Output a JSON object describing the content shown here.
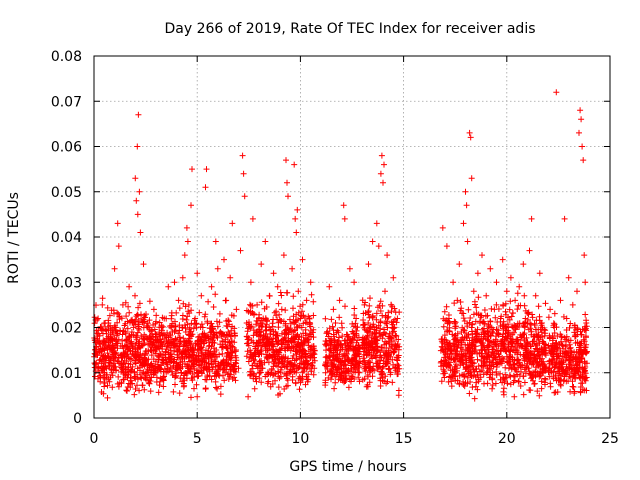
{
  "chart_data": {
    "type": "scatter",
    "title": "Day 266 of 2019, Rate Of TEC Index for receiver adis",
    "xlabel": "GPS time / hours",
    "ylabel": "ROTI / TECUs",
    "xlim": [
      0,
      25
    ],
    "ylim": [
      0,
      0.08
    ],
    "xticks": [
      0,
      5,
      10,
      15,
      20,
      25
    ],
    "xtick_labels": [
      "0",
      "5",
      "10",
      "15",
      "20",
      "25"
    ],
    "yticks": [
      0,
      0.01,
      0.02,
      0.03,
      0.04,
      0.05,
      0.06,
      0.07,
      0.08
    ],
    "ytick_labels": [
      "0",
      "0.01",
      "0.02",
      "0.03",
      "0.04",
      "0.05",
      "0.06",
      "0.07",
      "0.08"
    ],
    "grid": true,
    "marker": "+",
    "color": "#ff0000",
    "series": [
      {
        "name": "ROTI",
        "points": [
          [
            0.1,
            0.012
          ],
          [
            0.2,
            0.022
          ],
          [
            0.3,
            0.008
          ],
          [
            0.4,
            0.025
          ],
          [
            0.5,
            0.015
          ],
          [
            0.6,
            0.011
          ],
          [
            0.7,
            0.018
          ],
          [
            0.8,
            0.009
          ],
          [
            0.9,
            0.014
          ],
          [
            1.0,
            0.033
          ],
          [
            1.05,
            0.02
          ],
          [
            1.15,
            0.043
          ],
          [
            1.2,
            0.038
          ],
          [
            1.3,
            0.012
          ],
          [
            1.4,
            0.025
          ],
          [
            1.5,
            0.01
          ],
          [
            1.6,
            0.017
          ],
          [
            1.7,
            0.029
          ],
          [
            1.8,
            0.013
          ],
          [
            1.9,
            0.021
          ],
          [
            2.0,
            0.053
          ],
          [
            2.05,
            0.048
          ],
          [
            2.1,
            0.06
          ],
          [
            2.12,
            0.045
          ],
          [
            2.15,
            0.067
          ],
          [
            2.2,
            0.05
          ],
          [
            2.25,
            0.041
          ],
          [
            2.3,
            0.016
          ],
          [
            2.4,
            0.034
          ],
          [
            2.5,
            0.012
          ],
          [
            2.6,
            0.02
          ],
          [
            2.7,
            0.009
          ],
          [
            2.8,
            0.015
          ],
          [
            2.9,
            0.024
          ],
          [
            3.0,
            0.011
          ],
          [
            3.1,
            0.018
          ],
          [
            3.2,
            0.008
          ],
          [
            3.3,
            0.013
          ],
          [
            3.4,
            0.022
          ],
          [
            3.5,
            0.01
          ],
          [
            3.6,
            0.029
          ],
          [
            3.7,
            0.014
          ],
          [
            3.8,
            0.019
          ],
          [
            3.9,
            0.03
          ],
          [
            4.0,
            0.012
          ],
          [
            4.1,
            0.026
          ],
          [
            4.2,
            0.017
          ],
          [
            4.3,
            0.031
          ],
          [
            4.4,
            0.036
          ],
          [
            4.5,
            0.042
          ],
          [
            4.55,
            0.039
          ],
          [
            4.6,
            0.025
          ],
          [
            4.7,
            0.047
          ],
          [
            4.75,
            0.055
          ],
          [
            4.8,
            0.015
          ],
          [
            4.9,
            0.022
          ],
          [
            5.0,
            0.032
          ],
          [
            5.1,
            0.018
          ],
          [
            5.2,
            0.027
          ],
          [
            5.3,
            0.011
          ],
          [
            5.4,
            0.051
          ],
          [
            5.45,
            0.055
          ],
          [
            5.5,
            0.021
          ],
          [
            5.6,
            0.016
          ],
          [
            5.7,
            0.029
          ],
          [
            5.8,
            0.014
          ],
          [
            5.9,
            0.039
          ],
          [
            6.0,
            0.033
          ],
          [
            6.1,
            0.023
          ],
          [
            6.2,
            0.012
          ],
          [
            6.3,
            0.035
          ],
          [
            6.4,
            0.026
          ],
          [
            6.5,
            0.019
          ],
          [
            6.6,
            0.031
          ],
          [
            6.7,
            0.043
          ],
          [
            6.8,
            0.015
          ],
          [
            6.9,
            0.024
          ],
          [
            7.0,
            0.011
          ],
          [
            7.1,
            0.037
          ],
          [
            7.2,
            0.058
          ],
          [
            7.25,
            0.054
          ],
          [
            7.3,
            0.049
          ],
          [
            7.4,
            0.021
          ],
          [
            7.5,
            0.016
          ],
          [
            7.6,
            0.03
          ],
          [
            7.7,
            0.044
          ],
          [
            7.8,
            0.012
          ],
          [
            7.9,
            0.025
          ],
          [
            8.0,
            0.018
          ],
          [
            8.1,
            0.034
          ],
          [
            8.2,
            0.022
          ],
          [
            8.3,
            0.039
          ],
          [
            8.4,
            0.015
          ],
          [
            8.5,
            0.027
          ],
          [
            8.6,
            0.01
          ],
          [
            8.7,
            0.032
          ],
          [
            8.8,
            0.019
          ],
          [
            8.9,
            0.029
          ],
          [
            9.0,
            0.013
          ],
          [
            9.1,
            0.024
          ],
          [
            9.2,
            0.036
          ],
          [
            9.3,
            0.057
          ],
          [
            9.35,
            0.052
          ],
          [
            9.4,
            0.049
          ],
          [
            9.5,
            0.017
          ],
          [
            9.6,
            0.033
          ],
          [
            9.7,
            0.056
          ],
          [
            9.75,
            0.044
          ],
          [
            9.8,
            0.041
          ],
          [
            9.85,
            0.046
          ],
          [
            9.9,
            0.028
          ],
          [
            10.0,
            0.022
          ],
          [
            10.1,
            0.035
          ],
          [
            10.2,
            0.011
          ],
          [
            10.3,
            0.026
          ],
          [
            10.4,
            0.016
          ],
          [
            10.5,
            0.03
          ],
          [
            10.6,
            0.014
          ],
          [
            11.3,
            0.019
          ],
          [
            11.4,
            0.029
          ],
          [
            11.5,
            0.012
          ],
          [
            11.6,
            0.024
          ],
          [
            11.7,
            0.021
          ],
          [
            11.8,
            0.015
          ],
          [
            11.9,
            0.026
          ],
          [
            12.0,
            0.01
          ],
          [
            12.1,
            0.047
          ],
          [
            12.15,
            0.044
          ],
          [
            12.3,
            0.018
          ],
          [
            12.4,
            0.033
          ],
          [
            12.5,
            0.013
          ],
          [
            12.6,
            0.03
          ],
          [
            12.7,
            0.022
          ],
          [
            12.8,
            0.009
          ],
          [
            13.0,
            0.016
          ],
          [
            13.1,
            0.025
          ],
          [
            13.2,
            0.011
          ],
          [
            13.3,
            0.034
          ],
          [
            13.4,
            0.02
          ],
          [
            13.5,
            0.039
          ],
          [
            13.6,
            0.015
          ],
          [
            13.7,
            0.043
          ],
          [
            13.8,
            0.038
          ],
          [
            13.9,
            0.054
          ],
          [
            13.95,
            0.058
          ],
          [
            14.0,
            0.052
          ],
          [
            14.05,
            0.056
          ],
          [
            14.1,
            0.028
          ],
          [
            14.2,
            0.036
          ],
          [
            14.3,
            0.017
          ],
          [
            14.4,
            0.025
          ],
          [
            14.5,
            0.031
          ],
          [
            14.6,
            0.011
          ],
          [
            14.7,
            0.022
          ],
          [
            16.9,
            0.042
          ],
          [
            17.0,
            0.012
          ],
          [
            17.1,
            0.038
          ],
          [
            17.2,
            0.022
          ],
          [
            17.3,
            0.016
          ],
          [
            17.4,
            0.03
          ],
          [
            17.5,
            0.01
          ],
          [
            17.6,
            0.026
          ],
          [
            17.7,
            0.034
          ],
          [
            17.8,
            0.019
          ],
          [
            17.9,
            0.043
          ],
          [
            18.0,
            0.05
          ],
          [
            18.05,
            0.047
          ],
          [
            18.1,
            0.039
          ],
          [
            18.2,
            0.063
          ],
          [
            18.25,
            0.062
          ],
          [
            18.3,
            0.053
          ],
          [
            18.4,
            0.028
          ],
          [
            18.5,
            0.015
          ],
          [
            18.6,
            0.032
          ],
          [
            18.7,
            0.021
          ],
          [
            18.8,
            0.036
          ],
          [
            18.9,
            0.012
          ],
          [
            19.0,
            0.027
          ],
          [
            19.1,
            0.018
          ],
          [
            19.2,
            0.033
          ],
          [
            19.3,
            0.01
          ],
          [
            19.4,
            0.024
          ],
          [
            19.5,
            0.03
          ],
          [
            19.6,
            0.014
          ],
          [
            19.7,
            0.022
          ],
          [
            19.8,
            0.035
          ],
          [
            19.9,
            0.017
          ],
          [
            20.0,
            0.028
          ],
          [
            20.1,
            0.011
          ],
          [
            20.2,
            0.031
          ],
          [
            20.3,
            0.02
          ],
          [
            20.4,
            0.026
          ],
          [
            20.5,
            0.013
          ],
          [
            20.6,
            0.029
          ],
          [
            20.7,
            0.016
          ],
          [
            20.8,
            0.034
          ],
          [
            20.9,
            0.022
          ],
          [
            21.0,
            0.012
          ],
          [
            21.1,
            0.037
          ],
          [
            21.2,
            0.044
          ],
          [
            21.3,
            0.018
          ],
          [
            21.4,
            0.027
          ],
          [
            21.5,
            0.01
          ],
          [
            21.6,
            0.032
          ],
          [
            21.7,
            0.021
          ],
          [
            21.8,
            0.015
          ],
          [
            22.1,
            0.024
          ],
          [
            22.2,
            0.013
          ],
          [
            22.3,
            0.02
          ],
          [
            22.4,
            0.072
          ],
          [
            22.5,
            0.011
          ],
          [
            22.6,
            0.026
          ],
          [
            22.7,
            0.016
          ],
          [
            22.8,
            0.044
          ],
          [
            22.9,
            0.022
          ],
          [
            23.0,
            0.031
          ],
          [
            23.1,
            0.009
          ],
          [
            23.2,
            0.025
          ],
          [
            23.3,
            0.018
          ],
          [
            23.4,
            0.028
          ],
          [
            23.5,
            0.063
          ],
          [
            23.55,
            0.068
          ],
          [
            23.6,
            0.066
          ],
          [
            23.65,
            0.06
          ],
          [
            23.7,
            0.057
          ],
          [
            23.75,
            0.036
          ],
          [
            23.8,
            0.03
          ],
          [
            23.85,
            0.021
          ]
        ]
      }
    ],
    "density_bands": [
      {
        "xmin": 0.0,
        "xmax": 6.9,
        "ymin": 0.004,
        "ymax": 0.025
      },
      {
        "xmin": 7.4,
        "xmax": 10.7,
        "ymin": 0.004,
        "ymax": 0.027
      },
      {
        "xmin": 11.2,
        "xmax": 12.9,
        "ymin": 0.005,
        "ymax": 0.023
      },
      {
        "xmin": 13.0,
        "xmax": 14.8,
        "ymin": 0.004,
        "ymax": 0.027
      },
      {
        "xmin": 16.8,
        "xmax": 21.9,
        "ymin": 0.004,
        "ymax": 0.026
      },
      {
        "xmin": 22.0,
        "xmax": 23.9,
        "ymin": 0.004,
        "ymax": 0.023
      }
    ]
  }
}
